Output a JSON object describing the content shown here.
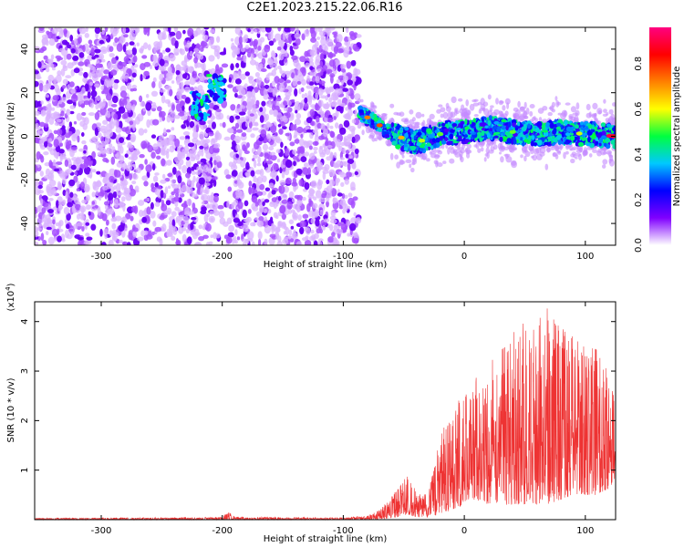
{
  "title": "C2E1.2023.215.22.06.R16",
  "spectrogram": {
    "xlabel": "Height of straight line (km)",
    "ylabel": "Frequency (Hz)",
    "xlim": [
      -355,
      125
    ],
    "ylim": [
      -50,
      50
    ],
    "xticks": [
      "-300",
      "-200",
      "-100",
      "0",
      "100"
    ],
    "xtick_values": [
      -300,
      -200,
      -100,
      0,
      100
    ],
    "yticks": [
      "-40",
      "-20",
      "0",
      "20",
      "40"
    ],
    "ytick_values": [
      -40,
      -20,
      0,
      20,
      40
    ],
    "noise_region_end": -87,
    "echo_track": [
      {
        "x": -87,
        "y": 11
      },
      {
        "x": -75,
        "y": 7
      },
      {
        "x": -60,
        "y": 1
      },
      {
        "x": -40,
        "y": -3
      },
      {
        "x": -20,
        "y": 1
      },
      {
        "x": 0,
        "y": 2
      },
      {
        "x": 20,
        "y": 4
      },
      {
        "x": 40,
        "y": 2
      },
      {
        "x": 60,
        "y": 1
      },
      {
        "x": 80,
        "y": 2
      },
      {
        "x": 100,
        "y": 1
      },
      {
        "x": 125,
        "y": 0
      }
    ],
    "early_blobs": [
      {
        "x": -205,
        "y": 22
      },
      {
        "x": -218,
        "y": 14
      }
    ]
  },
  "colorbar": {
    "label": "Normalized spectral amplitude",
    "ticks": [
      "0.0",
      "0.2",
      "0.4",
      "0.6",
      "0.8"
    ],
    "tick_values": [
      0.0,
      0.2,
      0.4,
      0.6,
      0.8
    ],
    "range": [
      0,
      0.96
    ],
    "colors": [
      "#ffffff",
      "#8000ff",
      "#0000ff",
      "#00c8ff",
      "#00ff40",
      "#ffff00",
      "#ff8000",
      "#ff0000",
      "#ff0080"
    ]
  },
  "chart_data": {
    "type": "line",
    "title": "C2E1.2023.215.22.06.R16",
    "xlabel": "Height of straight line (km)",
    "ylabel": "SNR (10 * v/v)",
    "scale_label": "(x10",
    "scale_exp": "4",
    "scale_close": ")",
    "xlim": [
      -355,
      125
    ],
    "ylim": [
      0,
      4.4
    ],
    "xticks": [
      "-300",
      "-200",
      "-100",
      "0",
      "100"
    ],
    "xtick_values": [
      -300,
      -200,
      -100,
      0,
      100
    ],
    "yticks": [
      "1",
      "2",
      "3",
      "4"
    ],
    "ytick_values": [
      1,
      2,
      3,
      4
    ],
    "series": [
      {
        "color": "#ee3333",
        "envelope": [
          {
            "x": -355,
            "min": 0.0,
            "max": 0.03
          },
          {
            "x": -200,
            "min": 0.0,
            "max": 0.05
          },
          {
            "x": -195,
            "min": 0.0,
            "max": 0.18
          },
          {
            "x": -190,
            "min": 0.0,
            "max": 0.06
          },
          {
            "x": -100,
            "min": 0.0,
            "max": 0.04
          },
          {
            "x": -80,
            "min": 0.0,
            "max": 0.08
          },
          {
            "x": -70,
            "min": 0.0,
            "max": 0.2
          },
          {
            "x": -55,
            "min": 0.05,
            "max": 0.7
          },
          {
            "x": -48,
            "min": 0.1,
            "max": 0.9
          },
          {
            "x": -40,
            "min": 0.05,
            "max": 0.6
          },
          {
            "x": -30,
            "min": 0.05,
            "max": 0.5
          },
          {
            "x": -20,
            "min": 0.1,
            "max": 1.7
          },
          {
            "x": -10,
            "min": 0.2,
            "max": 2.4
          },
          {
            "x": 0,
            "min": 0.3,
            "max": 2.6
          },
          {
            "x": 10,
            "min": 0.4,
            "max": 2.9
          },
          {
            "x": 20,
            "min": 0.3,
            "max": 3.1
          },
          {
            "x": 30,
            "min": 0.3,
            "max": 3.5
          },
          {
            "x": 40,
            "min": 0.3,
            "max": 3.8
          },
          {
            "x": 50,
            "min": 0.3,
            "max": 4.0
          },
          {
            "x": 60,
            "min": 0.3,
            "max": 4.0
          },
          {
            "x": 68,
            "min": 0.3,
            "max": 4.4
          },
          {
            "x": 80,
            "min": 0.4,
            "max": 3.9
          },
          {
            "x": 90,
            "min": 0.5,
            "max": 3.7
          },
          {
            "x": 100,
            "min": 0.5,
            "max": 3.5
          },
          {
            "x": 110,
            "min": 0.5,
            "max": 3.6
          },
          {
            "x": 118,
            "min": 0.6,
            "max": 3.0
          },
          {
            "x": 125,
            "min": 0.8,
            "max": 2.4
          }
        ]
      }
    ]
  }
}
